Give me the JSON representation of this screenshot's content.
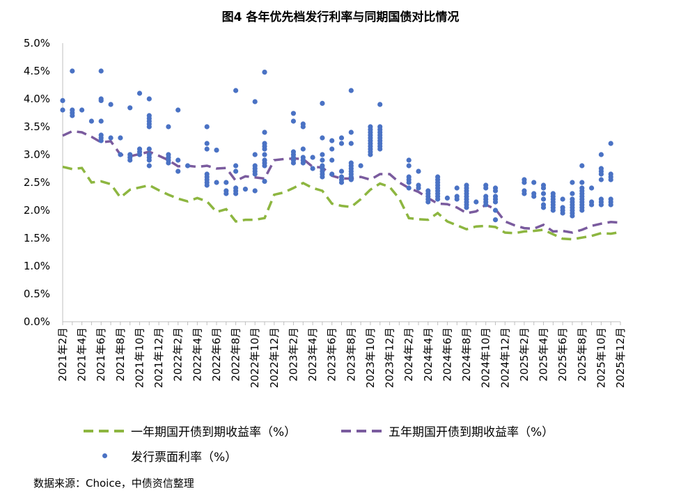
{
  "chart_data": {
    "type": "line+scatter",
    "title": "图4 各年优先档发行利率与同期国债对比情况",
    "y_ticks": [
      "0.0%",
      "0.5%",
      "1.0%",
      "1.5%",
      "2.0%",
      "2.5%",
      "3.0%",
      "3.5%",
      "4.0%",
      "4.5%",
      "5.0%"
    ],
    "ylim": [
      0,
      5
    ],
    "x_ticks": [
      "2021年2月",
      "2021年4月",
      "2021年6月",
      "2021年8月",
      "2021年10月",
      "2021年12月",
      "2022年2月",
      "2022年4月",
      "2022年6月",
      "2022年8月",
      "2022年10月",
      "2022年12月",
      "2023年2月",
      "2023年4月",
      "2023年6月",
      "2023年8月",
      "2023年10月",
      "2023年12月",
      "2024年2月",
      "2024年4月",
      "2024年6月",
      "2024年8月",
      "2024年10月",
      "2024年12月",
      "2025年2月",
      "2025年4月",
      "2025年6月",
      "2025年8月",
      "2025年10月",
      "2025年12月"
    ],
    "months": [
      "2021-02",
      "2021-03",
      "2021-04",
      "2021-05",
      "2021-06",
      "2021-07",
      "2021-08",
      "2021-09",
      "2021-10",
      "2021-11",
      "2021-12",
      "2022-01",
      "2022-02",
      "2022-03",
      "2022-04",
      "2022-05",
      "2022-06",
      "2022-07",
      "2022-08",
      "2022-09",
      "2022-10",
      "2022-11",
      "2022-12",
      "2023-01",
      "2023-02",
      "2023-03",
      "2023-04",
      "2023-05",
      "2023-06",
      "2023-07",
      "2023-08",
      "2023-09",
      "2023-10",
      "2023-11",
      "2023-12",
      "2024-01",
      "2024-02",
      "2024-03",
      "2024-04",
      "2024-05",
      "2024-06",
      "2024-07",
      "2024-08",
      "2024-09",
      "2024-10",
      "2024-11",
      "2024-12",
      "2025-01",
      "2025-02",
      "2025-03",
      "2025-04",
      "2025-05",
      "2025-06",
      "2025-07",
      "2025-08",
      "2025-09",
      "2025-10",
      "2025-11",
      "2025-12"
    ],
    "series": [
      {
        "name": "一年期国开债到期收益率（%）",
        "style": "dashed-line",
        "color": "#8db640",
        "values": [
          2.78,
          2.74,
          2.76,
          2.5,
          2.52,
          2.47,
          2.23,
          2.37,
          2.41,
          2.45,
          2.36,
          2.28,
          2.21,
          2.16,
          2.22,
          2.16,
          1.97,
          2.02,
          1.8,
          1.83,
          1.83,
          1.86,
          2.28,
          2.32,
          2.4,
          2.49,
          2.4,
          2.35,
          2.12,
          2.08,
          2.06,
          2.2,
          2.37,
          2.48,
          2.42,
          2.21,
          1.86,
          1.84,
          1.83,
          1.95,
          1.8,
          1.73,
          1.66,
          1.71,
          1.72,
          1.7,
          1.6,
          1.59,
          1.62,
          1.63,
          1.65,
          1.57,
          1.49,
          1.48,
          1.51,
          1.54,
          1.59,
          1.58,
          1.61
        ]
      },
      {
        "name": "五年期国开债到期收益率（%）",
        "style": "dashed-line",
        "color": "#7a5b9e",
        "values": [
          3.34,
          3.42,
          3.4,
          3.32,
          3.22,
          3.24,
          3.0,
          2.97,
          3.01,
          3.05,
          2.98,
          2.9,
          2.79,
          2.8,
          2.78,
          2.8,
          2.75,
          2.76,
          2.53,
          2.61,
          2.59,
          2.57,
          2.9,
          2.92,
          2.93,
          2.92,
          2.78,
          2.77,
          2.62,
          2.57,
          2.57,
          2.6,
          2.55,
          2.65,
          2.65,
          2.5,
          2.4,
          2.33,
          2.22,
          2.12,
          2.11,
          2.05,
          1.95,
          1.98,
          2.1,
          2.02,
          1.8,
          1.73,
          1.68,
          1.67,
          1.74,
          1.62,
          1.63,
          1.6,
          1.65,
          1.72,
          1.76,
          1.79,
          1.78
        ]
      },
      {
        "name": "发行票面利率（%）",
        "style": "scatter",
        "color": "#4a72c4",
        "points": [
          [
            "2021-02",
            [
              3.97,
              3.8
            ]
          ],
          [
            "2021-03",
            [
              4.5,
              3.8,
              3.75,
              3.7
            ]
          ],
          [
            "2021-04",
            [
              3.8
            ]
          ],
          [
            "2021-05",
            [
              3.6
            ]
          ],
          [
            "2021-06",
            [
              4.5,
              4.0,
              3.97,
              3.6,
              3.35,
              3.3,
              3.25
            ]
          ],
          [
            "2021-07",
            [
              3.9,
              3.3
            ]
          ],
          [
            "2021-08",
            [
              3.3,
              3.0
            ]
          ],
          [
            "2021-09",
            [
              3.84,
              3.0,
              2.95,
              2.9
            ]
          ],
          [
            "2021-10",
            [
              4.1,
              3.1,
              3.05,
              3.0
            ]
          ],
          [
            "2021-11",
            [
              4.0,
              3.7,
              3.65,
              3.6,
              3.55,
              3.5,
              3.1,
              3.0,
              2.95,
              2.9,
              2.8
            ]
          ],
          [
            "2022-01",
            [
              3.5,
              3.0,
              2.95,
              2.9,
              2.85
            ]
          ],
          [
            "2022-02",
            [
              3.8,
              2.9,
              2.7
            ]
          ],
          [
            "2022-03",
            [
              2.8
            ]
          ],
          [
            "2022-05",
            [
              3.5,
              3.2,
              3.1,
              2.65,
              2.6,
              2.55,
              2.5,
              2.45
            ]
          ],
          [
            "2022-06",
            [
              3.08,
              2.5
            ]
          ],
          [
            "2022-07",
            [
              2.5,
              2.35,
              2.3
            ]
          ],
          [
            "2022-08",
            [
              4.15,
              2.8,
              2.7,
              2.4,
              2.35,
              2.3
            ]
          ],
          [
            "2022-09",
            [
              2.38
            ]
          ],
          [
            "2022-10",
            [
              3.95,
              3.0,
              2.8,
              2.75,
              2.7,
              2.65,
              2.35
            ]
          ],
          [
            "2022-11",
            [
              4.48,
              3.4,
              3.2,
              3.15,
              3.1,
              3.0,
              2.9,
              2.85,
              2.8,
              2.52
            ]
          ],
          [
            "2023-02",
            [
              3.74,
              3.6,
              3.05,
              3.0,
              2.95,
              2.9,
              2.85
            ]
          ],
          [
            "2023-03",
            [
              3.55,
              3.5,
              3.1,
              2.95,
              2.9,
              2.85
            ]
          ],
          [
            "2023-04",
            [
              2.95,
              2.75
            ]
          ],
          [
            "2023-05",
            [
              3.92,
              3.3,
              3.0,
              2.9,
              2.8,
              2.75,
              2.7,
              2.65,
              2.6
            ]
          ],
          [
            "2023-06",
            [
              3.25,
              3.1,
              2.9,
              2.65
            ]
          ],
          [
            "2023-07",
            [
              3.3,
              3.2,
              2.7,
              2.6,
              2.55,
              2.5
            ]
          ],
          [
            "2023-08",
            [
              4.15,
              3.4,
              3.2,
              2.85,
              2.8,
              2.75,
              2.7,
              2.65,
              2.6,
              2.55
            ]
          ],
          [
            "2023-09",
            [
              2.8
            ]
          ],
          [
            "2023-10",
            [
              3.5,
              3.45,
              3.4,
              3.35,
              3.3,
              3.25,
              3.2,
              3.15,
              3.1,
              3.05,
              3.0
            ]
          ],
          [
            "2023-11",
            [
              3.9,
              3.5,
              3.45,
              3.4,
              3.35,
              3.3,
              3.25,
              3.2,
              3.15,
              3.1
            ]
          ],
          [
            "2024-02",
            [
              2.9,
              2.8,
              2.6,
              2.55,
              2.5,
              2.4
            ]
          ],
          [
            "2024-03",
            [
              2.7,
              2.45,
              2.4
            ]
          ],
          [
            "2024-04",
            [
              2.35,
              2.3,
              2.25,
              2.2,
              2.15
            ]
          ],
          [
            "2024-05",
            [
              2.6,
              2.55,
              2.5,
              2.45,
              2.4,
              2.35,
              2.3,
              2.25,
              2.2
            ]
          ],
          [
            "2024-06",
            [
              2.22
            ]
          ],
          [
            "2024-07",
            [
              2.4,
              2.25,
              2.2
            ]
          ],
          [
            "2024-08",
            [
              2.45,
              2.4,
              2.35,
              2.3,
              2.25,
              2.2,
              2.15,
              2.1,
              2.05
            ]
          ],
          [
            "2024-09",
            [
              2.15
            ]
          ],
          [
            "2024-10",
            [
              2.45,
              2.4,
              2.25,
              2.2,
              2.15,
              2.1
            ]
          ],
          [
            "2024-11",
            [
              2.4,
              2.35,
              2.25,
              2.2,
              2.15,
              2.0,
              1.83
            ]
          ],
          [
            "2025-02",
            [
              2.55,
              2.5,
              2.35,
              2.3
            ]
          ],
          [
            "2025-03",
            [
              2.5,
              2.3,
              2.25
            ]
          ],
          [
            "2025-04",
            [
              2.45,
              2.4,
              2.3,
              2.2,
              2.1,
              2.05
            ]
          ],
          [
            "2025-05",
            [
              2.3,
              2.25,
              2.2,
              2.15,
              2.1,
              2.05,
              2.0
            ]
          ],
          [
            "2025-06",
            [
              2.2,
              2.05,
              2.0,
              1.95
            ]
          ],
          [
            "2025-07",
            [
              2.5,
              2.3,
              2.2,
              2.15,
              2.1,
              2.05,
              2.0,
              1.95,
              1.9
            ]
          ],
          [
            "2025-08",
            [
              2.8,
              2.5,
              2.4,
              2.35,
              2.3,
              2.25,
              2.2,
              2.15,
              2.1,
              2.05,
              2.0
            ]
          ],
          [
            "2025-09",
            [
              2.4,
              2.15,
              2.1
            ]
          ],
          [
            "2025-10",
            [
              3.0,
              2.75,
              2.7,
              2.65,
              2.55,
              2.2,
              2.15,
              2.1
            ]
          ],
          [
            "2025-11",
            [
              3.2,
              2.65,
              2.6,
              2.55,
              2.2,
              2.15,
              2.1
            ]
          ]
        ]
      }
    ],
    "legend": [
      "一年期国开债到期收益率（%）",
      "五年期国开债到期收益率（%）",
      "发行票面利率（%）"
    ]
  },
  "source_note": "数据来源：Choice，中债资信整理"
}
